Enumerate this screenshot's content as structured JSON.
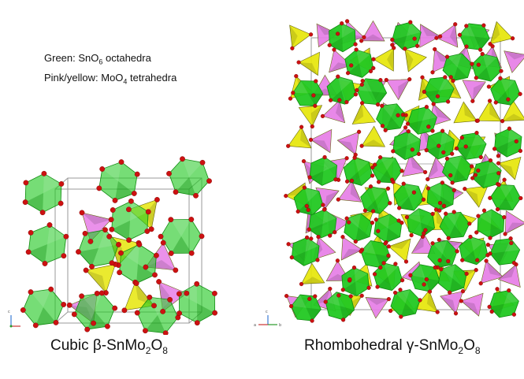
{
  "legend": {
    "line1_prefix": "Green: SnO",
    "line1_sub": "6",
    "line1_suffix": " octahedra",
    "line2_prefix": "Pink/yellow: MoO",
    "line2_sub": "4",
    "line2_suffix": " tetrahedra"
  },
  "captions": {
    "left": {
      "prefix": "Cubic β-SnMo",
      "sub1": "2",
      "mid": "O",
      "sub2": "8"
    },
    "right": {
      "prefix": "Rhombohedral γ-SnMo",
      "sub1": "2",
      "mid": "O",
      "sub2": "8"
    }
  },
  "axis_labels": {
    "a": "a",
    "b": "b",
    "c": "c"
  },
  "colors": {
    "sn_octahedra": "#22c822",
    "sn_octahedra_dark": "#0e8a0e",
    "mo_tetrahedra_pink": "#e67ee6",
    "mo_tetrahedra_yellow": "#e6e60a",
    "oxygen": "#cc1111",
    "cell_edge": "#9a9a9a"
  }
}
